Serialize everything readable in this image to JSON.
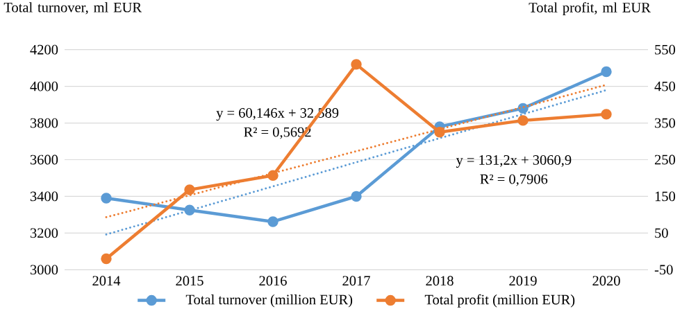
{
  "chart_data": {
    "type": "line",
    "ylabel": "Total turnover, ml EUR",
    "y2label": "Total profit, ml EUR",
    "categories": [
      "2014",
      "2015",
      "2016",
      "2017",
      "2018",
      "2019",
      "2020"
    ],
    "series": [
      {
        "name": "Total turnover (million EUR)",
        "color": "#5b9bd5",
        "values": [
          3390,
          3325,
          3262,
          3400,
          3780,
          3880,
          4080
        ],
        "marker": "circle",
        "line_style": "solid"
      },
      {
        "name": "Total profit (million EUR)",
        "color": "#ed7d31",
        "axis": "y2",
        "values": [
          -20,
          168,
          207,
          510,
          325,
          357,
          374
        ],
        "marker": "circle",
        "line_style": "solid"
      },
      {
        "type": "line",
        "color": "#5b9bd5",
        "values": [
          3192,
          3323,
          3454,
          3586,
          3717,
          3848,
          3979
        ],
        "marker": "none",
        "line_style": "dotted"
      },
      {
        "type": "line",
        "color": "#ed7d31",
        "axis": "y2",
        "values": [
          93,
          153,
          213,
          273,
          333,
          393,
          454
        ],
        "marker": "none",
        "line_style": "dotted"
      }
    ],
    "ylim": [
      3000,
      4200
    ],
    "yticks": [
      3000,
      3200,
      3400,
      3600,
      3800,
      4000,
      4200
    ],
    "y2lim": [
      -50,
      550
    ],
    "y2ticks": [
      -50,
      50,
      150,
      250,
      350,
      450,
      550
    ],
    "annotations": [
      "y = 60,146x + 32,589",
      "R² = 0,5692",
      "y = 131,2x + 3060,9",
      "R² = 0,7906"
    ],
    "grid": "y",
    "legend": "bottom"
  }
}
